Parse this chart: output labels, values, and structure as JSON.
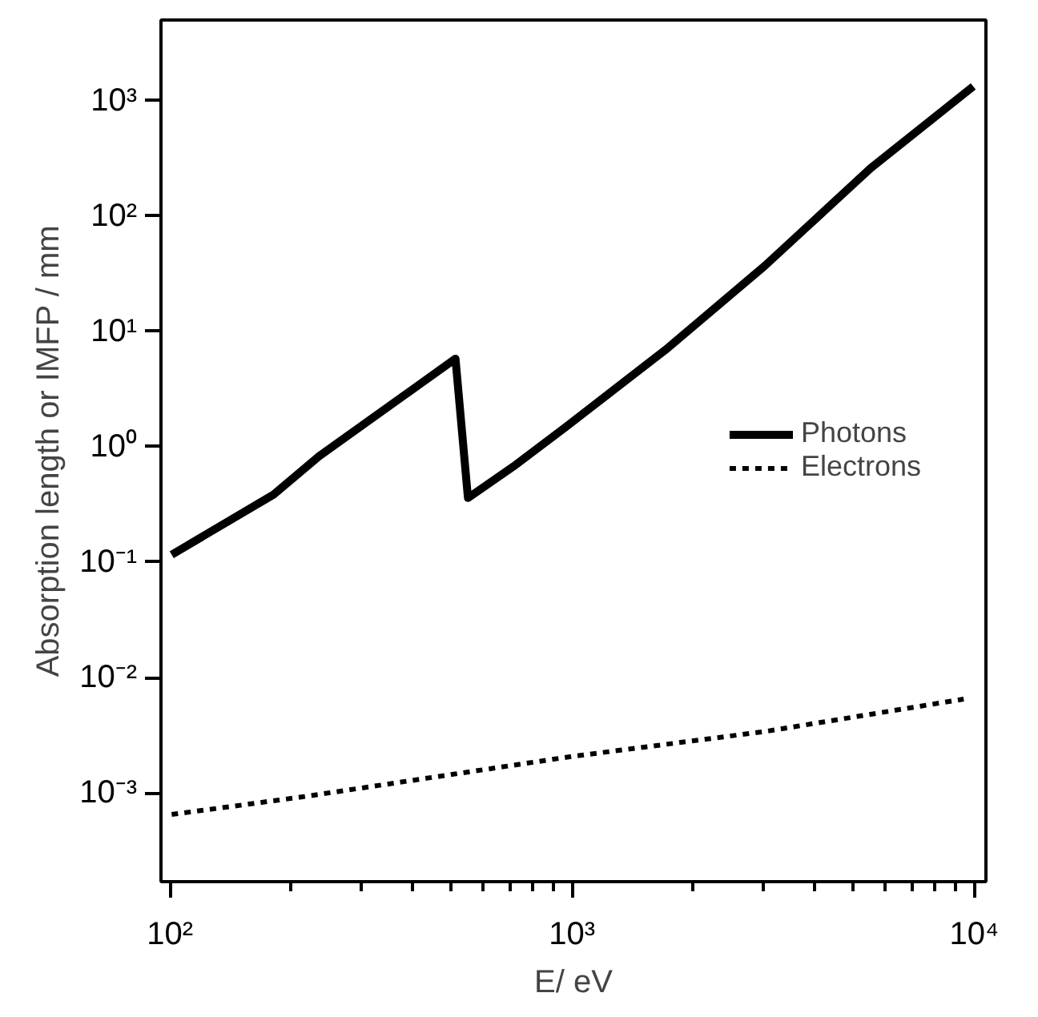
{
  "chart_data": {
    "type": "line",
    "xlabel": "E/ eV",
    "ylabel": "Absorption length or IMFP / mm",
    "log": "xy",
    "grid": false,
    "legend": "right",
    "xlim": [
      95,
      10700
    ],
    "ylim": [
      0.00017,
      5000
    ],
    "xticks": [
      {
        "value": 100,
        "label": "10²"
      },
      {
        "value": 1000,
        "label": "10³"
      },
      {
        "value": 10000,
        "label": "10⁴"
      }
    ],
    "yticks": [
      {
        "value": 0.001,
        "label": "10⁻³"
      },
      {
        "value": 0.01,
        "label": "10⁻²"
      },
      {
        "value": 0.1,
        "label": "10⁻¹"
      },
      {
        "value": 1,
        "label": "10⁰"
      },
      {
        "value": 10,
        "label": "10¹"
      },
      {
        "value": 100,
        "label": "10²"
      },
      {
        "value": 1000,
        "label": "10³"
      }
    ],
    "series": [
      {
        "name": "Photons",
        "color": "#000000",
        "line_style": "solid",
        "x": [
          101,
          181,
          235,
          513,
          551,
          713,
          966,
          1706,
          3013,
          5530,
          9950
        ],
        "values": [
          0.116,
          0.385,
          0.83,
          5.8,
          0.36,
          0.67,
          1.49,
          6.9,
          36.9,
          260,
          1330
        ]
      },
      {
        "name": "Electrons",
        "color": "#000000",
        "line_style": "dashed",
        "x": [
          101,
          212,
          1000,
          3013,
          9420
        ],
        "values": [
          0.00065,
          0.00092,
          0.00207,
          0.0034,
          0.0065
        ]
      }
    ]
  }
}
